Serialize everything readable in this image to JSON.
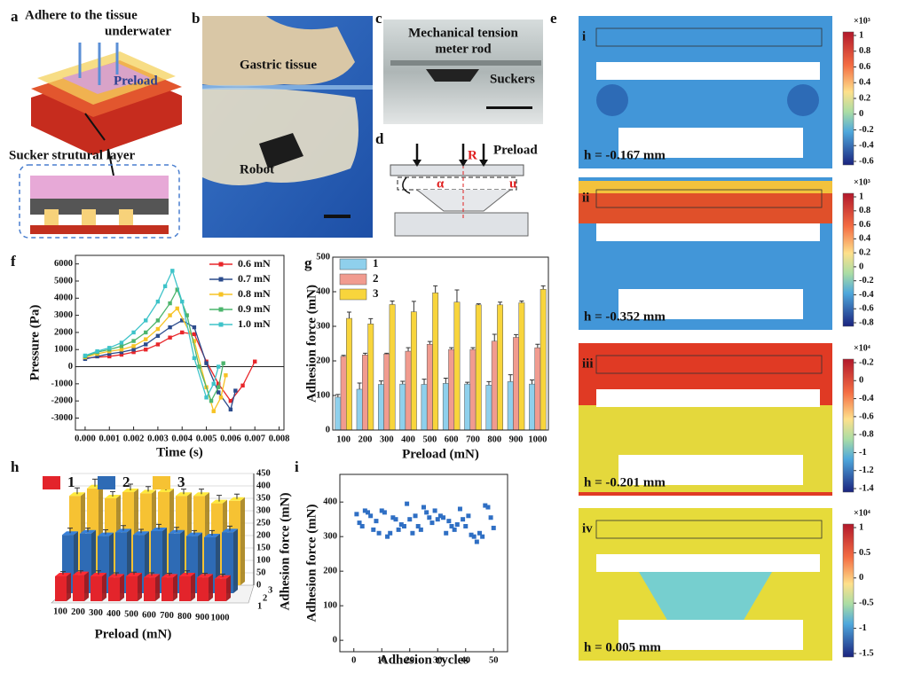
{
  "panel_labels": [
    "a",
    "b",
    "c",
    "d",
    "e",
    "f",
    "g",
    "h",
    "i"
  ],
  "panel_a": {
    "title_line1": "Adhere to the tissue",
    "title_line2": "underwater",
    "preload": "Preload",
    "layer": "Sucker strutural layer"
  },
  "panel_b": {
    "tissue": "Gastric tissue",
    "robot": "Robot"
  },
  "panel_c": {
    "rod_line1": "Mechanical tension",
    "rod_line2": "meter rod",
    "suckers": "Suckers"
  },
  "panel_d": {
    "preload": "Preload",
    "radius": "R",
    "angle": "α",
    "displacement": "u"
  },
  "panel_e": [
    {
      "label": "i",
      "h_label": "h = -0.167 mm",
      "exponent": "×10³",
      "colorbar": [
        "1",
        "0.8",
        "0.6",
        "0.4",
        "0.2",
        "0",
        "-0.2",
        "-0.4",
        "-0.6"
      ]
    },
    {
      "label": "ii",
      "h_label": "h = -0.352 mm",
      "exponent": "×10³",
      "colorbar": [
        "1",
        "0.8",
        "0.6",
        "0.4",
        "0.2",
        "0",
        "-0.2",
        "-0.4",
        "-0.6",
        "-0.8"
      ]
    },
    {
      "label": "iii",
      "h_label": "h = -0.201 mm",
      "exponent": "×10⁴",
      "colorbar": [
        "-0.2",
        "0",
        "-0.4",
        "-0.6",
        "-0.8",
        "-1",
        "-1.2",
        "-1.4"
      ]
    },
    {
      "label": "iv",
      "h_label": "h = 0.005 mm",
      "exponent": "×10⁴",
      "colorbar": [
        "1",
        "0.5",
        "0",
        "-0.5",
        "-1",
        "-1.5"
      ]
    }
  ],
  "chart_data": [
    {
      "type": "line",
      "xlabel": "Time (s)",
      "ylabel": "Pressure (Pa)",
      "xlim": [
        -0.0004,
        0.0082
      ],
      "ylim": [
        -3700,
        6500
      ],
      "xticks": [
        {
          "value": 0,
          "label": "0.000"
        },
        {
          "value": 0.001,
          "label": "0.001"
        },
        {
          "value": 0.002,
          "label": "0.002"
        },
        {
          "value": 0.003,
          "label": "0.003"
        },
        {
          "value": 0.004,
          "label": "0.004"
        },
        {
          "value": 0.005,
          "label": "0.005"
        },
        {
          "value": 0.006,
          "label": "0.006"
        },
        {
          "value": 0.007,
          "label": "0.007"
        },
        {
          "value": 0.008,
          "label": "0.008"
        }
      ],
      "yticks": [
        -3000,
        -2000,
        -1000,
        0,
        1000,
        2000,
        3000,
        4000,
        5000,
        6000
      ],
      "series": [
        {
          "name": "0.6 mN",
          "color": "#e8262a",
          "x": [
            0,
            0.001,
            0.0015,
            0.002,
            0.0025,
            0.003,
            0.0035,
            0.004,
            0.0045,
            0.005,
            0.0055,
            0.006,
            0.0065,
            0.007
          ],
          "values": [
            500,
            600,
            700,
            850,
            1000,
            1300,
            1700,
            2000,
            1900,
            300,
            -1000,
            -2000,
            -1100,
            300
          ]
        },
        {
          "name": "0.7 mN",
          "color": "#2b4b8c",
          "x": [
            0,
            0.0005,
            0.001,
            0.0015,
            0.002,
            0.0025,
            0.003,
            0.0035,
            0.004,
            0.0045,
            0.005,
            0.0055,
            0.006,
            0.0062
          ],
          "values": [
            450,
            600,
            750,
            850,
            1000,
            1300,
            1800,
            2300,
            2700,
            2300,
            200,
            -1500,
            -2500,
            -1400
          ]
        },
        {
          "name": "0.8 mN",
          "color": "#f7c325",
          "x": [
            0,
            0.0005,
            0.001,
            0.0015,
            0.002,
            0.0025,
            0.003,
            0.0035,
            0.0038,
            0.0045,
            0.005,
            0.0053,
            0.0056,
            0.0058
          ],
          "values": [
            550,
            750,
            900,
            1000,
            1200,
            1600,
            2200,
            3000,
            3400,
            1500,
            -1200,
            -2600,
            -1800,
            -500
          ]
        },
        {
          "name": "0.9 mN",
          "color": "#4cb56d",
          "x": [
            0,
            0.0005,
            0.001,
            0.0015,
            0.002,
            0.0025,
            0.003,
            0.0035,
            0.0038,
            0.0042,
            0.0047,
            0.0052,
            0.0055,
            0.0057
          ],
          "values": [
            600,
            850,
            1000,
            1200,
            1500,
            2000,
            2700,
            3700,
            4500,
            3000,
            0,
            -2000,
            -1200,
            200
          ]
        },
        {
          "name": "1.0 mN",
          "color": "#3ec3c9",
          "x": [
            0,
            0.0005,
            0.001,
            0.0015,
            0.002,
            0.0025,
            0.003,
            0.0033,
            0.0036,
            0.004,
            0.0045,
            0.005,
            0.0053,
            0.0055
          ],
          "values": [
            650,
            900,
            1100,
            1400,
            2000,
            2700,
            3800,
            4700,
            5600,
            3800,
            500,
            -1800,
            -1000,
            0
          ]
        }
      ]
    },
    {
      "type": "bar",
      "xlabel": "Preload (mN)",
      "ylabel": "Adhesion force (mN)",
      "categories": [
        "100",
        "200",
        "300",
        "400",
        "500",
        "600",
        "700",
        "800",
        "900",
        "1000"
      ],
      "ylim": [
        0,
        500
      ],
      "yticks": [
        0,
        100,
        200,
        300,
        400,
        500
      ],
      "series": [
        {
          "name": "1",
          "color": "#8fd0ec",
          "values": [
            95,
            118,
            132,
            133,
            132,
            135,
            133,
            130,
            140,
            133
          ],
          "errors": [
            8,
            18,
            10,
            8,
            15,
            15,
            5,
            10,
            20,
            12
          ]
        },
        {
          "name": "2",
          "color": "#f19b8f",
          "values": [
            213,
            217,
            220,
            228,
            248,
            233,
            233,
            257,
            268,
            238
          ],
          "errors": [
            3,
            5,
            2,
            10,
            8,
            5,
            5,
            20,
            8,
            10
          ]
        },
        {
          "name": "3",
          "color": "#f8d53c",
          "values": [
            323,
            307,
            363,
            342,
            397,
            370,
            362,
            362,
            368,
            407
          ],
          "errors": [
            18,
            15,
            10,
            30,
            20,
            35,
            3,
            8,
            5,
            10
          ]
        }
      ]
    },
    {
      "type": "bar3d",
      "xlabel": "Preload (mN)",
      "ylabel": "Adhesion force (mN)",
      "categories": [
        "100",
        "200",
        "300",
        "400",
        "500",
        "600",
        "700",
        "800",
        "900",
        "1000"
      ],
      "ylim": [
        0,
        450
      ],
      "yticks": [
        0,
        50,
        100,
        150,
        200,
        250,
        300,
        350,
        400,
        450
      ],
      "series": [
        {
          "name": "1",
          "color": "#e3242b",
          "values": [
            100,
            105,
            100,
            95,
            100,
            95,
            95,
            100,
            95,
            90
          ],
          "errors": [
            12,
            10,
            15,
            12,
            10,
            12,
            10,
            15,
            10,
            12
          ]
        },
        {
          "name": "2",
          "color": "#2e6bb5",
          "values": [
            235,
            240,
            230,
            245,
            235,
            250,
            240,
            230,
            225,
            245
          ],
          "errors": [
            20,
            15,
            18,
            20,
            15,
            20,
            18,
            15,
            20,
            18
          ]
        },
        {
          "name": "3",
          "color": "#f6c233",
          "values": [
            360,
            390,
            350,
            375,
            370,
            375,
            360,
            360,
            330,
            340
          ],
          "errors": [
            25,
            30,
            20,
            25,
            20,
            25,
            20,
            20,
            25,
            20
          ]
        }
      ]
    },
    {
      "type": "scatter",
      "xlabel": "Adhesion cycles",
      "ylabel": "Adhesion force (mN)",
      "color": "#2f6fc4",
      "xlim": [
        -5,
        55
      ],
      "ylim": [
        -33,
        480
      ],
      "xticks": [
        0,
        10,
        20,
        30,
        40,
        50
      ],
      "yticks": [
        0,
        100,
        200,
        300,
        400
      ],
      "x": [
        1,
        2,
        3,
        4,
        5,
        6,
        7,
        8,
        9,
        10,
        11,
        12,
        13,
        14,
        15,
        16,
        17,
        18,
        19,
        20,
        21,
        22,
        23,
        24,
        25,
        26,
        27,
        28,
        29,
        30,
        31,
        32,
        33,
        34,
        35,
        36,
        37,
        38,
        39,
        40,
        41,
        42,
        43,
        44,
        45,
        46,
        47,
        48,
        49,
        50
      ],
      "values": [
        365,
        340,
        330,
        375,
        370,
        360,
        320,
        345,
        310,
        375,
        370,
        300,
        310,
        355,
        350,
        320,
        335,
        330,
        395,
        350,
        310,
        360,
        330,
        320,
        385,
        370,
        355,
        340,
        375,
        350,
        360,
        355,
        310,
        345,
        330,
        320,
        335,
        380,
        350,
        330,
        360,
        305,
        300,
        285,
        310,
        300,
        390,
        385,
        355,
        325
      ]
    }
  ]
}
